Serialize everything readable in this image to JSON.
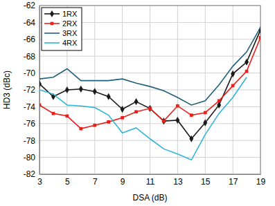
{
  "chart_data": {
    "type": "line",
    "xlabel": "DSA (dB)",
    "ylabel": "HD3 (dBc)",
    "x": [
      3,
      4,
      5,
      6,
      7,
      8,
      9,
      10,
      11,
      12,
      13,
      14,
      15,
      16,
      17,
      18,
      19
    ],
    "series": [
      {
        "name": "1RX",
        "color": "#1a1a1a",
        "marker": "diamond",
        "values": [
          -71.3,
          -72.8,
          -72.0,
          -71.9,
          -72.2,
          -72.8,
          -74.3,
          -73.4,
          -74.2,
          -75.7,
          -75.6,
          -77.8,
          -75.9,
          -73.8,
          -70.1,
          -68.7,
          -64.9
        ]
      },
      {
        "name": "2RX",
        "color": "#e8201c",
        "marker": "square",
        "values": [
          -73.8,
          -74.8,
          -75.1,
          -76.6,
          -76.2,
          -75.8,
          -75.3,
          -74.6,
          -74.2,
          -75.7,
          -73.9,
          -75.0,
          -74.7,
          -73.3,
          -71.5,
          -69.8,
          -65.8
        ]
      },
      {
        "name": "3RX",
        "color": "#1f5f7a",
        "marker": "none",
        "values": [
          -70.7,
          -70.5,
          -69.5,
          -70.9,
          -70.9,
          -70.9,
          -70.7,
          -71.2,
          -71.6,
          -72.1,
          -72.9,
          -73.8,
          -73.3,
          -71.4,
          -69.2,
          -67.5,
          -64.6
        ]
      },
      {
        "name": "4RX",
        "color": "#30b4d6",
        "marker": "none",
        "values": [
          -72.0,
          -72.5,
          -73.8,
          -73.9,
          -74.1,
          -75.0,
          -77.1,
          -76.5,
          -77.8,
          -79.0,
          -79.6,
          -80.3,
          -77.3,
          -74.8,
          -72.9,
          -70.5,
          null
        ]
      }
    ],
    "xlim": [
      3,
      19
    ],
    "xticks": [
      3,
      5,
      7,
      9,
      11,
      13,
      15,
      17,
      19
    ],
    "ylim": [
      -82,
      -62
    ],
    "yticks": [
      -82,
      -80,
      -78,
      -76,
      -74,
      -72,
      -70,
      -68,
      -66,
      -64,
      -62
    ],
    "grid": true,
    "legend": "upper left"
  }
}
